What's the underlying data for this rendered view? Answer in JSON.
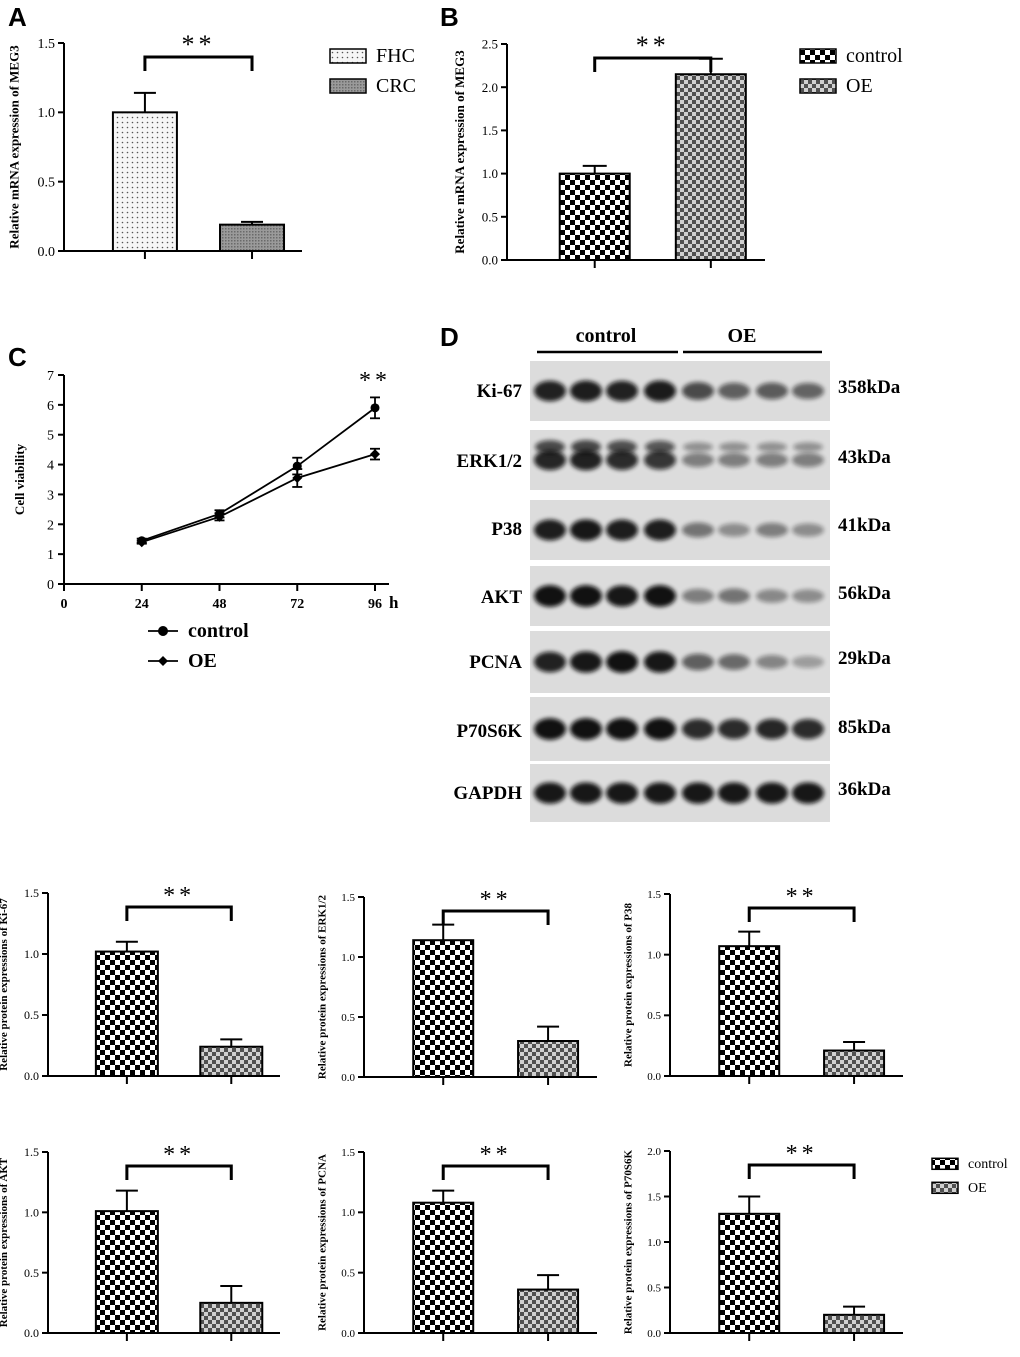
{
  "chart_data": [
    {
      "panel": "A",
      "type": "bar",
      "categories": [
        "FHC",
        "CRC"
      ],
      "values": [
        1.0,
        0.19
      ],
      "errors": [
        0.14,
        0.02
      ],
      "ylabel": "Relative mRNA expression of MEG3",
      "ylim": [
        0,
        1.5
      ],
      "yticks": [
        "0.0",
        "0.5",
        "1.0",
        "1.5"
      ],
      "significance": "**",
      "legend": [
        "FHC",
        "CRC"
      ],
      "legend_position": "right"
    },
    {
      "panel": "B",
      "type": "bar",
      "categories": [
        "control",
        "OE"
      ],
      "values": [
        1.0,
        2.15
      ],
      "errors": [
        0.09,
        0.18
      ],
      "ylabel": "Relative mRNA expression of MEG3",
      "ylim": [
        0,
        2.5
      ],
      "yticks": [
        "0.0",
        "0.5",
        "1.0",
        "1.5",
        "2.0",
        "2.5"
      ],
      "significance": "**",
      "legend": [
        "control",
        "OE"
      ],
      "legend_position": "right"
    },
    {
      "panel": "C",
      "type": "line",
      "x": [
        24,
        48,
        72,
        96
      ],
      "xticks": [
        "0",
        "24",
        "48",
        "72",
        "96"
      ],
      "x_unit": "h",
      "ylabel": "Cell viability",
      "ylim": [
        0,
        7
      ],
      "yticks": [
        "0",
        "1",
        "2",
        "3",
        "4",
        "5",
        "6",
        "7"
      ],
      "series": [
        {
          "name": "control",
          "marker": "circle",
          "values": [
            1.45,
            2.35,
            3.95,
            5.9
          ],
          "errors": [
            0.07,
            0.12,
            0.28,
            0.35
          ]
        },
        {
          "name": "OE",
          "marker": "diamond",
          "values": [
            1.4,
            2.25,
            3.55,
            4.35
          ],
          "errors": [
            0.05,
            0.12,
            0.3,
            0.18
          ]
        }
      ],
      "significance": "**",
      "legend_position": "bottom"
    },
    {
      "panel": "E1",
      "type": "bar",
      "categories": [
        "control",
        "OE"
      ],
      "values": [
        1.02,
        0.24
      ],
      "errors": [
        0.08,
        0.06
      ],
      "ylabel": "Relative protein expressions of Ki-67",
      "ylim": [
        0,
        1.5
      ],
      "yticks": [
        "0.0",
        "0.5",
        "1.0",
        "1.5"
      ],
      "significance": "**"
    },
    {
      "panel": "E2",
      "type": "bar",
      "categories": [
        "control",
        "OE"
      ],
      "values": [
        1.14,
        0.3
      ],
      "errors": [
        0.13,
        0.12
      ],
      "ylabel": "Relative protein expressions of ERK1/2",
      "ylim": [
        0,
        1.5
      ],
      "yticks": [
        "0.0",
        "0.5",
        "1.0",
        "1.5"
      ],
      "significance": "**"
    },
    {
      "panel": "E3",
      "type": "bar",
      "categories": [
        "control",
        "OE"
      ],
      "values": [
        1.07,
        0.21
      ],
      "errors": [
        0.12,
        0.07
      ],
      "ylabel": "Relative protein expressions of P38",
      "ylim": [
        0,
        1.5
      ],
      "yticks": [
        "0.0",
        "0.5",
        "1.0",
        "1.5"
      ],
      "significance": "**"
    },
    {
      "panel": "E4",
      "type": "bar",
      "categories": [
        "control",
        "OE"
      ],
      "values": [
        1.01,
        0.25
      ],
      "errors": [
        0.17,
        0.14
      ],
      "ylabel": "Relative protein expressions of AKT",
      "ylim": [
        0,
        1.5
      ],
      "yticks": [
        "0.0",
        "0.5",
        "1.0",
        "1.5"
      ],
      "significance": "**"
    },
    {
      "panel": "E5",
      "type": "bar",
      "categories": [
        "control",
        "OE"
      ],
      "values": [
        1.08,
        0.36
      ],
      "errors": [
        0.1,
        0.12
      ],
      "ylabel": "Relative protein expressions of PCNA",
      "ylim": [
        0,
        1.5
      ],
      "yticks": [
        "0.0",
        "0.5",
        "1.0",
        "1.5"
      ],
      "significance": "**"
    },
    {
      "panel": "E6",
      "type": "bar",
      "categories": [
        "control",
        "OE"
      ],
      "values": [
        1.31,
        0.2
      ],
      "errors": [
        0.19,
        0.09
      ],
      "ylabel": "Relative protein expressions of P70S6K",
      "ylim": [
        0,
        2.0
      ],
      "yticks": [
        "0.0",
        "0.5",
        "1.0",
        "1.5",
        "2.0"
      ],
      "significance": "**",
      "legend": [
        "control",
        "OE"
      ],
      "legend_position": "right"
    }
  ],
  "western_blot": {
    "panel": "D",
    "groups": [
      "control",
      "OE"
    ],
    "lanes_per_group": 4,
    "bands": [
      {
        "protein": "Ki-67",
        "size": "358kDa",
        "control": [
          0.9,
          0.92,
          0.9,
          0.93
        ],
        "oe": [
          0.7,
          0.6,
          0.62,
          0.58
        ]
      },
      {
        "protein": "ERK1/2",
        "size": "43kDa",
        "control": [
          0.88,
          0.9,
          0.85,
          0.8
        ],
        "oe": [
          0.45,
          0.45,
          0.45,
          0.45
        ]
      },
      {
        "protein": "P38",
        "size": "41kDa",
        "control": [
          0.92,
          0.95,
          0.92,
          0.92
        ],
        "oe": [
          0.5,
          0.38,
          0.45,
          0.38
        ]
      },
      {
        "protein": "AKT",
        "size": "56kDa",
        "control": [
          0.98,
          0.98,
          0.95,
          0.98
        ],
        "oe": [
          0.45,
          0.5,
          0.4,
          0.38
        ]
      },
      {
        "protein": "PCNA",
        "size": "29kDa",
        "control": [
          0.9,
          0.95,
          0.98,
          0.95
        ],
        "oe": [
          0.6,
          0.55,
          0.42,
          0.3
        ]
      },
      {
        "protein": "P70S6K",
        "size": "85kDa",
        "control": [
          0.98,
          0.98,
          0.98,
          0.98
        ],
        "oe": [
          0.85,
          0.85,
          0.88,
          0.85
        ]
      },
      {
        "protein": "GAPDH",
        "size": "36kDa",
        "control": [
          0.95,
          0.95,
          0.95,
          0.95
        ],
        "oe": [
          0.95,
          0.95,
          0.95,
          0.95
        ]
      }
    ]
  },
  "panel_letters": [
    "A",
    "B",
    "C",
    "D"
  ],
  "colors": {
    "ink": "#000000",
    "fhc_fill": "#f4f4f4",
    "crc_fill": "#a0a0a0",
    "control_fill": "#000000",
    "oe_fill": "#707070",
    "blot_bg": "#d8d8d8",
    "band": "#0a0a0a"
  },
  "patterns": {
    "FHC": "dots",
    "CRC": "fine-grey",
    "control": "checker-black",
    "OE": "checker-grey"
  }
}
